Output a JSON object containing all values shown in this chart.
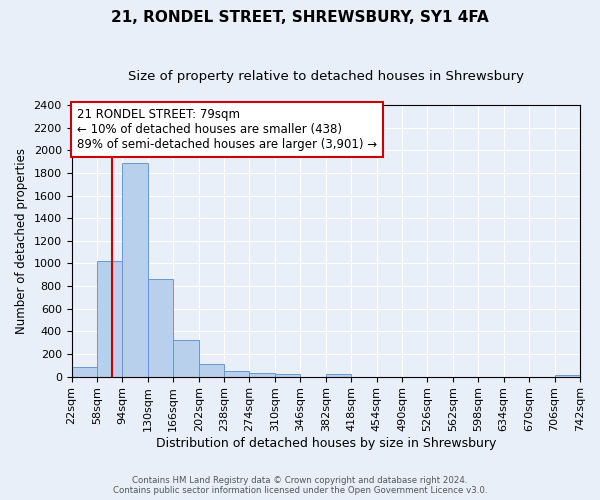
{
  "title": "21, RONDEL STREET, SHREWSBURY, SY1 4FA",
  "subtitle": "Size of property relative to detached houses in Shrewsbury",
  "xlabel": "Distribution of detached houses by size in Shrewsbury",
  "ylabel": "Number of detached properties",
  "bin_edges": [
    22,
    58,
    94,
    130,
    166,
    202,
    238,
    274,
    310,
    346,
    382,
    418,
    454,
    490,
    526,
    562,
    598,
    634,
    670,
    706,
    742
  ],
  "bin_counts": [
    85,
    1020,
    1890,
    860,
    320,
    115,
    50,
    30,
    25,
    0,
    20,
    0,
    0,
    0,
    0,
    0,
    0,
    0,
    0,
    10
  ],
  "bar_color": "#b8d0ec",
  "bar_edgecolor": "#6699cc",
  "vline_x": 79,
  "vline_color": "#cc0000",
  "annotation_line1": "21 RONDEL STREET: 79sqm",
  "annotation_line2": "← 10% of detached houses are smaller (438)",
  "annotation_line3": "89% of semi-detached houses are larger (3,901) →",
  "annotation_fontsize": 8.5,
  "title_fontsize": 11,
  "subtitle_fontsize": 9.5,
  "xlabel_fontsize": 9,
  "ylabel_fontsize": 8.5,
  "tick_fontsize": 8,
  "ylim": [
    0,
    2400
  ],
  "yticks": [
    0,
    200,
    400,
    600,
    800,
    1000,
    1200,
    1400,
    1600,
    1800,
    2000,
    2200,
    2400
  ],
  "footer_line1": "Contains HM Land Registry data © Crown copyright and database right 2024.",
  "footer_line2": "Contains public sector information licensed under the Open Government Licence v3.0.",
  "background_color": "#e8eff8",
  "plot_bg_color": "#e8eff8",
  "grid_color": "#c8d8ec"
}
